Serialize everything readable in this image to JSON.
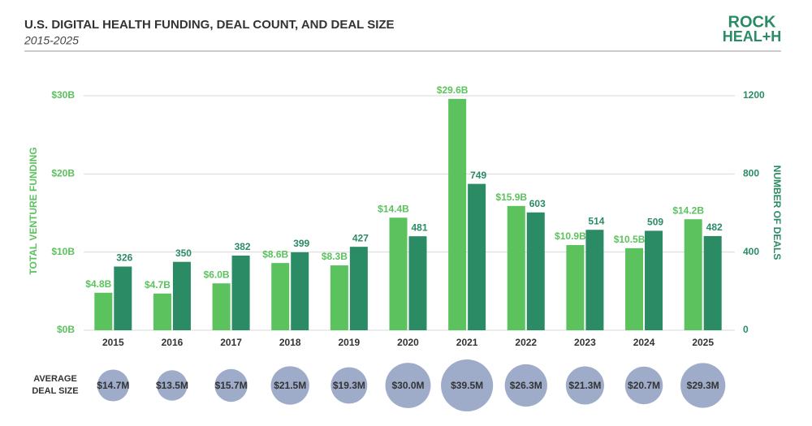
{
  "chart_data": {
    "type": "bar",
    "title": "U.S. DIGITAL HEALTH FUNDING, DEAL COUNT, AND DEAL SIZE",
    "subtitle": "2015-2025",
    "logo": [
      "ROCK",
      "HEAL+H"
    ],
    "ylabel": "TOTAL VENTURE FUNDING",
    "y2label": "NUMBER OF DEALS",
    "categories": [
      "2015",
      "2016",
      "2017",
      "2018",
      "2019",
      "2020",
      "2021",
      "2022",
      "2023",
      "2024",
      "2025"
    ],
    "ylim": [
      0,
      30
    ],
    "yticks": [
      {
        "value": 0,
        "label": "$0B"
      },
      {
        "value": 10,
        "label": "$10B"
      },
      {
        "value": 20,
        "label": "$20B"
      },
      {
        "value": 30,
        "label": "$30B"
      }
    ],
    "y2lim": [
      0,
      1200
    ],
    "y2ticks": [
      0,
      400,
      800,
      1200
    ],
    "grid": true,
    "series": [
      {
        "color": "#5bc25e",
        "values": [
          4.8,
          4.7,
          6.0,
          8.6,
          8.3,
          14.4,
          29.6,
          15.9,
          10.9,
          10.5,
          14.2
        ],
        "value_labels": [
          "$4.8B",
          "$4.7B",
          "$6.0B",
          "$8.6B",
          "$8.3B",
          "$14.4B",
          "$29.6B",
          "$15.9B",
          "$10.9B",
          "$10.5B",
          "$14.2B"
        ]
      },
      {
        "color": "#2a8b64",
        "axis": "y2",
        "values": [
          326,
          350,
          382,
          399,
          427,
          481,
          749,
          603,
          514,
          509,
          482
        ]
      }
    ],
    "deal_size": {
      "label": [
        "AVERAGE",
        "DEAL SIZE"
      ],
      "color": "#9eabc9",
      "values": [
        14.7,
        13.5,
        15.7,
        21.5,
        19.3,
        30.0,
        39.5,
        26.3,
        21.3,
        20.7,
        29.3
      ],
      "value_labels": [
        "$14.7M",
        "$13.5M",
        "$15.7M",
        "$21.5M",
        "$19.3M",
        "$30.0M",
        "$39.5M",
        "$26.3M",
        "$21.3M",
        "$20.7M",
        "$29.3M"
      ]
    }
  }
}
